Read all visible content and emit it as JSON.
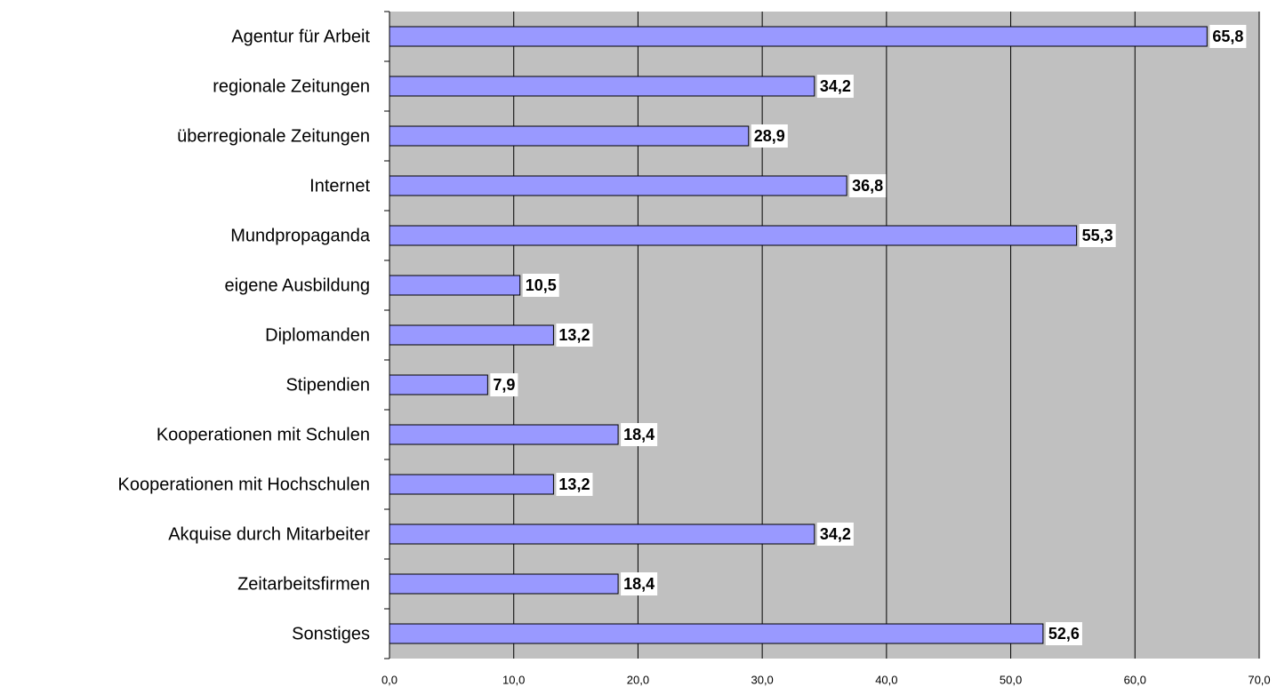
{
  "chart_data": {
    "type": "bar",
    "orientation": "horizontal",
    "categories": [
      "Agentur für Arbeit",
      "regionale Zeitungen",
      "überregionale Zeitungen",
      "Internet",
      "Mundpropaganda",
      "eigene Ausbildung",
      "Diplomanden",
      "Stipendien",
      "Kooperationen mit Schulen",
      "Kooperationen mit Hochschulen",
      "Akquise durch Mitarbeiter",
      "Zeitarbeitsfirmen",
      "Sonstiges"
    ],
    "values": [
      65.8,
      34.2,
      28.9,
      36.8,
      55.3,
      10.5,
      13.2,
      7.9,
      18.4,
      13.2,
      34.2,
      18.4,
      52.6
    ],
    "value_labels": [
      "65,8",
      "34,2",
      "28,9",
      "36,8",
      "55,3",
      "10,5",
      "13,2",
      "7,9",
      "18,4",
      "13,2",
      "34,2",
      "18,4",
      "52,6"
    ],
    "color": "#9999ff",
    "xlim": [
      0,
      70
    ],
    "xticks": [
      {
        "value": 0,
        "label": "0,0"
      },
      {
        "value": 10,
        "label": "10,0"
      },
      {
        "value": 20,
        "label": "20,0"
      },
      {
        "value": 30,
        "label": "30,0"
      },
      {
        "value": 40,
        "label": "40,0"
      },
      {
        "value": 50,
        "label": "50,0"
      },
      {
        "value": 60,
        "label": "60,0"
      },
      {
        "value": 70,
        "label": "70,0"
      }
    ],
    "grid": true
  }
}
